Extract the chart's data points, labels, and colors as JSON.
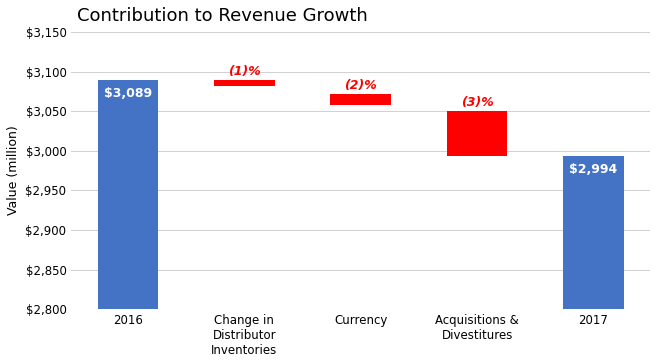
{
  "title": "Contribution to Revenue Growth",
  "ylabel": "Value (million)",
  "categories": [
    "2016",
    "Change in\nDistributor\nInventories",
    "Currency",
    "Acquisitions &\nDivestitures",
    "2017"
  ],
  "bar_bottoms": [
    2800,
    3082,
    3058,
    2994,
    2800
  ],
  "bar_tops": [
    3089,
    3089,
    3072,
    3050,
    2994
  ],
  "bar_colors": [
    "#4472C4",
    "#FF0000",
    "#FF0000",
    "#FF0000",
    "#4472C4"
  ],
  "bar_labels": [
    "$3,089",
    "(1)%",
    "(2)%",
    "(3)%",
    "$2,994"
  ],
  "label_colors": [
    "white",
    "#FF0000",
    "#FF0000",
    "#FF0000",
    "white"
  ],
  "label_inside": [
    true,
    false,
    false,
    false,
    true
  ],
  "ylim": [
    2800,
    3150
  ],
  "yticks": [
    2800,
    2850,
    2900,
    2950,
    3000,
    3050,
    3100,
    3150
  ],
  "background_color": "#FFFFFF",
  "grid_color": "#D0D0D0",
  "title_fontsize": 13,
  "axis_fontsize": 9,
  "tick_fontsize": 8.5,
  "label_fontsize": 9
}
